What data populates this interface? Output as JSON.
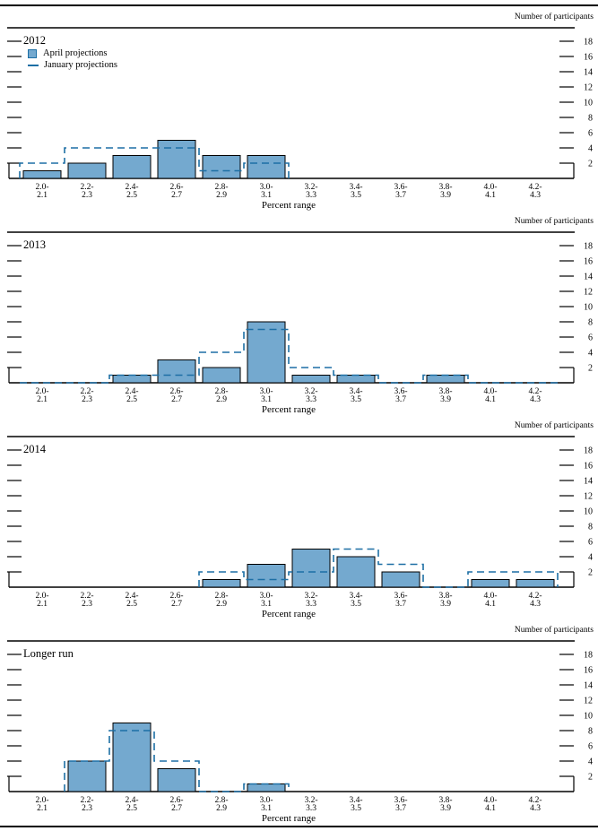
{
  "colors": {
    "april_fill": "#74a9cf",
    "april_edge": "#000000",
    "january_line": "#1d6fa5",
    "axis": "#000000",
    "text": "#000000"
  },
  "chart_data": [
    {
      "type": "bar",
      "title": "2012",
      "ylabel": "Number of participants",
      "xlabel": "Percent range",
      "categories": [
        "2.0-\n2.1",
        "2.2-\n2.3",
        "2.4-\n2.5",
        "2.6-\n2.7",
        "2.8-\n2.9",
        "3.0-\n3.1",
        "3.2-\n3.3",
        "3.4-\n3.5",
        "3.6-\n3.7",
        "3.8-\n3.9",
        "4.0-\n4.1",
        "4.2-\n4.3"
      ],
      "series": [
        {
          "name": "April projections",
          "style": "bar",
          "values": [
            1,
            2,
            3,
            5,
            3,
            3,
            0,
            0,
            0,
            0,
            0,
            0
          ]
        },
        {
          "name": "January projections",
          "style": "dashed-step",
          "values": [
            2,
            4,
            4,
            4,
            1,
            2,
            0,
            0,
            0,
            0,
            0,
            0
          ],
          "span": [
            0,
            5
          ]
        }
      ],
      "ylim": [
        0,
        19
      ],
      "yticks": [
        2,
        4,
        6,
        8,
        10,
        12,
        14,
        16,
        18
      ],
      "grid": false,
      "legend": true,
      "legend_position": "top-left"
    },
    {
      "type": "bar",
      "title": "2013",
      "ylabel": "Number of participants",
      "xlabel": "Percent range",
      "categories": [
        "2.0-\n2.1",
        "2.2-\n2.3",
        "2.4-\n2.5",
        "2.6-\n2.7",
        "2.8-\n2.9",
        "3.0-\n3.1",
        "3.2-\n3.3",
        "3.4-\n3.5",
        "3.6-\n3.7",
        "3.8-\n3.9",
        "4.0-\n4.1",
        "4.2-\n4.3"
      ],
      "series": [
        {
          "name": "April projections",
          "style": "bar",
          "values": [
            0,
            0,
            1,
            3,
            2,
            8,
            1,
            1,
            0,
            1,
            0,
            0
          ]
        },
        {
          "name": "January projections",
          "style": "dashed-step",
          "values": [
            0,
            0,
            1,
            1,
            4,
            7,
            2,
            1,
            0,
            1,
            0,
            0
          ],
          "span": [
            0,
            11
          ]
        }
      ],
      "ylim": [
        0,
        19
      ],
      "yticks": [
        2,
        4,
        6,
        8,
        10,
        12,
        14,
        16,
        18
      ],
      "grid": false,
      "legend": false,
      "legend_position": "none"
    },
    {
      "type": "bar",
      "title": "2014",
      "ylabel": "Number of participants",
      "xlabel": "Percent range",
      "categories": [
        "2.0-\n2.1",
        "2.2-\n2.3",
        "2.4-\n2.5",
        "2.6-\n2.7",
        "2.8-\n2.9",
        "3.0-\n3.1",
        "3.2-\n3.3",
        "3.4-\n3.5",
        "3.6-\n3.7",
        "3.8-\n3.9",
        "4.0-\n4.1",
        "4.2-\n4.3"
      ],
      "series": [
        {
          "name": "April projections",
          "style": "bar",
          "values": [
            0,
            0,
            0,
            0,
            1,
            3,
            5,
            4,
            2,
            0,
            1,
            1
          ]
        },
        {
          "name": "January projections",
          "style": "dashed-step",
          "values": [
            0,
            0,
            0,
            0,
            2,
            1,
            2,
            5,
            3,
            0,
            2,
            2
          ],
          "span": [
            4,
            11
          ]
        }
      ],
      "ylim": [
        0,
        19
      ],
      "yticks": [
        2,
        4,
        6,
        8,
        10,
        12,
        14,
        16,
        18
      ],
      "grid": false,
      "legend": false,
      "legend_position": "none"
    },
    {
      "type": "bar",
      "title": "Longer run",
      "ylabel": "Number of participants",
      "xlabel": "Percent range",
      "categories": [
        "2.0-\n2.1",
        "2.2-\n2.3",
        "2.4-\n2.5",
        "2.6-\n2.7",
        "2.8-\n2.9",
        "3.0-\n3.1",
        "3.2-\n3.3",
        "3.4-\n3.5",
        "3.6-\n3.7",
        "3.8-\n3.9",
        "4.0-\n4.1",
        "4.2-\n4.3"
      ],
      "series": [
        {
          "name": "April projections",
          "style": "bar",
          "values": [
            0,
            4,
            9,
            3,
            0,
            1,
            0,
            0,
            0,
            0,
            0,
            0
          ]
        },
        {
          "name": "January projections",
          "style": "dashed-step",
          "values": [
            0,
            4,
            8,
            4,
            0,
            1,
            0,
            0,
            0,
            0,
            0,
            0
          ],
          "span": [
            1,
            5
          ]
        }
      ],
      "ylim": [
        0,
        19
      ],
      "yticks": [
        2,
        4,
        6,
        8,
        10,
        12,
        14,
        16,
        18
      ],
      "grid": false,
      "legend": false,
      "legend_position": "none"
    }
  ]
}
